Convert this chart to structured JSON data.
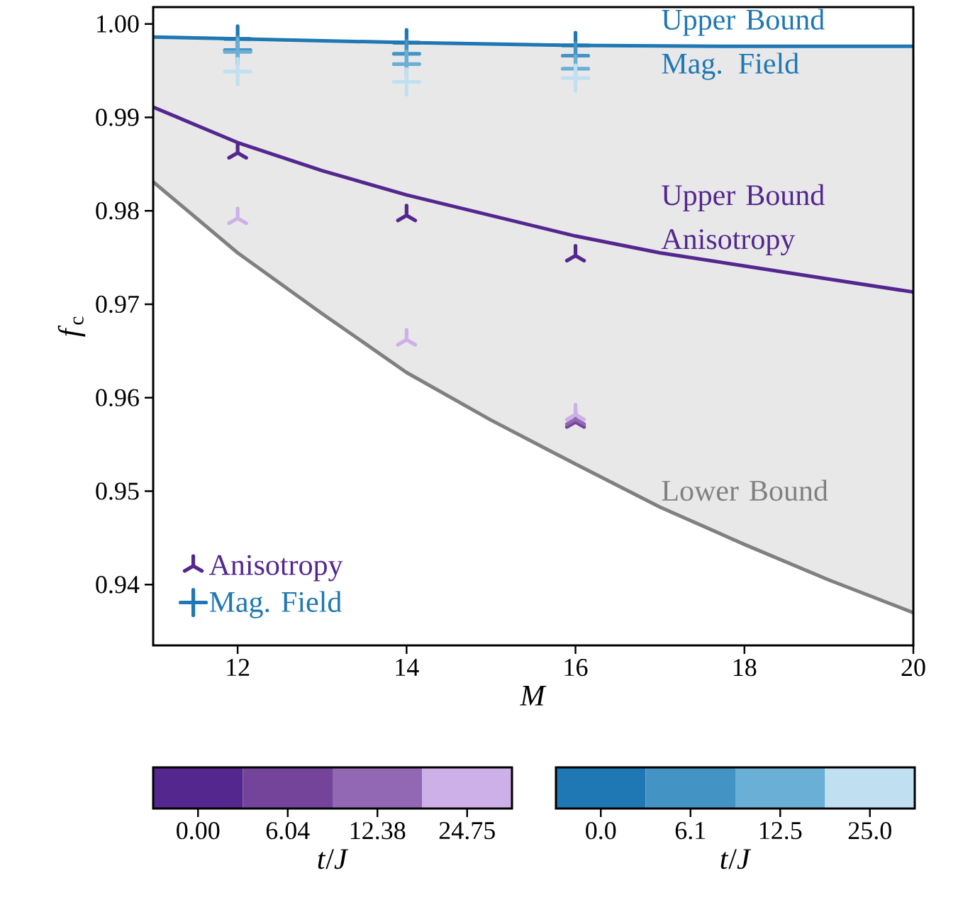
{
  "chart_data": [
    {
      "type": "line",
      "xlabel": "*M*",
      "ylabel": "*f*$_{c}$",
      "xlim": [
        11,
        20
      ],
      "ylim": [
        0.9335,
        1.0018
      ],
      "xticks": [
        12,
        14,
        16,
        18,
        20
      ],
      "yticks": [
        0.94,
        0.95,
        0.96,
        0.97,
        0.98,
        0.99,
        {
          "value": 1.0,
          "label": "1.00"
        }
      ],
      "grid": false,
      "legend": "bottom left",
      "series": [
        {
          "name": "Upper Bound Mag. Field",
          "type": "line",
          "color": "#1f77b4",
          "x": [
            11,
            12,
            14,
            16,
            18,
            20
          ],
          "values": [
            0.9986,
            0.9984,
            0.998,
            0.9977,
            0.9976,
            0.9976
          ]
        },
        {
          "name": "Upper Bound Anisotropy",
          "type": "line",
          "color": "#54278f",
          "x": [
            11,
            12,
            13,
            14,
            16,
            17,
            18,
            19,
            20
          ],
          "values": [
            0.9911,
            0.9873,
            0.9843,
            0.9817,
            0.9773,
            0.9755,
            0.9741,
            0.9727,
            0.9713
          ]
        },
        {
          "name": "Lower Bound",
          "type": "line",
          "color": "#808080",
          "x": [
            11,
            12,
            13,
            14,
            15,
            16,
            17,
            18,
            19,
            20
          ],
          "values": [
            0.9831,
            0.9755,
            0.969,
            0.9627,
            0.9576,
            0.9529,
            0.9483,
            0.9443,
            0.9405,
            0.937
          ],
          "lower": [
            0.9831,
            0.9755,
            0.969,
            0.9627,
            0.9576,
            0.9529,
            0.9483,
            0.9443,
            0.9405,
            0.937
          ],
          "upper": [
            0.9986,
            0.9984,
            0.9982,
            0.998,
            0.9978,
            0.9977,
            0.9976,
            0.9976,
            0.9976,
            0.9976
          ]
        },
        {
          "name": "Anisotropy",
          "type": "scatter",
          "color": "#54278f",
          "x": [
            12,
            12,
            14,
            14,
            16,
            16,
            16,
            16
          ],
          "values": [
            0.9862,
            0.9792,
            0.9795,
            0.9662,
            0.9752,
            0.9574,
            0.9577,
            0.9582
          ],
          "colors": [
            "#54278f",
            "#cdb0e8",
            "#54278f",
            "#cdb0e8",
            "#54278f",
            "#74449a",
            "#9268b5",
            "#cdb0e8"
          ]
        },
        {
          "name": "Mag. Field",
          "type": "scatter",
          "marker": "cross",
          "color": "#1f77b4",
          "x": [
            12,
            12,
            12,
            12,
            14,
            14,
            14,
            14,
            16,
            16,
            16,
            16
          ],
          "values": [
            0.9984,
            0.9972,
            0.997,
            0.9949,
            0.998,
            0.9968,
            0.9957,
            0.9938,
            0.9977,
            0.9966,
            0.9952,
            0.9942
          ],
          "colors": [
            "#1f77b4",
            "#4394c4",
            "#6aafd6",
            "#c0e0f2",
            "#1f77b4",
            "#4394c4",
            "#6aafd6",
            "#c0e0f2",
            "#1f77b4",
            "#4394c4",
            "#6aafd6",
            "#c0e0f2"
          ]
        }
      ]
    },
    {
      "type": "other",
      "xlabel": "*t*/*J*",
      "categories": [
        "0.00",
        "6.04",
        "12.38",
        "24.75"
      ],
      "colors": [
        "#54278f",
        "#74449a",
        "#9268b5",
        "#cdb0e8"
      ]
    },
    {
      "type": "other",
      "xlabel": "*t*/*J*",
      "categories": [
        "0.0",
        "6.1",
        "12.5",
        "25.0"
      ],
      "colors": [
        "#1f77b4",
        "#4394c4",
        "#6aafd6",
        "#c0e0f2"
      ]
    }
  ]
}
